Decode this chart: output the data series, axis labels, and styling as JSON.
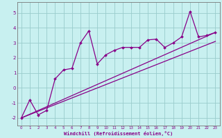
{
  "title": "",
  "xlabel": "Windchill (Refroidissement éolien,°C)",
  "xlim": [
    -0.5,
    23.5
  ],
  "ylim": [
    -2.5,
    5.7
  ],
  "yticks": [
    -2,
    -1,
    0,
    1,
    2,
    3,
    4,
    5
  ],
  "xticks": [
    0,
    1,
    2,
    3,
    4,
    5,
    6,
    7,
    8,
    9,
    10,
    11,
    12,
    13,
    14,
    15,
    16,
    17,
    18,
    19,
    20,
    21,
    22,
    23
  ],
  "bg_color": "#c8f0f0",
  "line_color": "#880088",
  "grid_color": "#99cccc",
  "line1_x": [
    0,
    1,
    2,
    3,
    4,
    5,
    6,
    7,
    8,
    9,
    10,
    11,
    12,
    13,
    14,
    15,
    16,
    17,
    18,
    19,
    20,
    21,
    22,
    23
  ],
  "line1_y": [
    -2.0,
    -0.8,
    -1.8,
    -1.5,
    0.6,
    1.2,
    1.3,
    3.0,
    3.8,
    1.6,
    2.2,
    2.5,
    2.7,
    2.7,
    2.7,
    3.2,
    3.25,
    2.7,
    3.0,
    3.4,
    5.1,
    3.4,
    3.5,
    3.7
  ],
  "line2_x": [
    0,
    23
  ],
  "line2_y": [
    -2.0,
    3.7
  ],
  "line3_x": [
    0,
    23
  ],
  "line3_y": [
    -2.0,
    3.1
  ]
}
